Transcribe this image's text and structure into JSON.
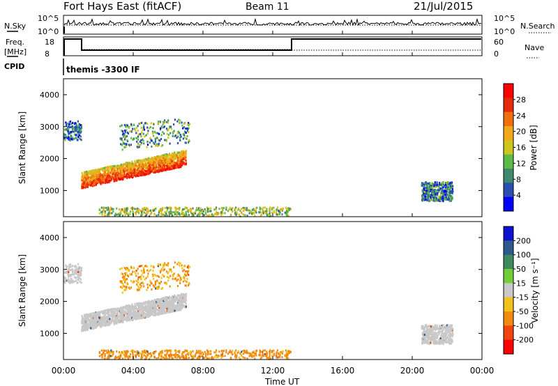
{
  "header": {
    "station": "Fort Hays East (fitACF)",
    "beam": "Beam 11",
    "date": "21/Jul/2015"
  },
  "top_panel": {
    "nsky_label": "N.Sky",
    "nsky_ticks": [
      "10^5",
      "10^0"
    ],
    "nsearch_label": "N.Search",
    "freq_label_1": "Freq.",
    "freq_label_2": "[MHz]",
    "freq_ticks": [
      "18",
      "8"
    ],
    "nave_ticks": [
      "60",
      "0"
    ],
    "nave_label": "Nave",
    "cpid_label": "CPID",
    "cpid_text": "themis -3300 IF"
  },
  "x_axis": {
    "label": "Time UT",
    "ticks": [
      "00:00",
      "04:00",
      "08:00",
      "12:00",
      "16:00",
      "20:00",
      "00:00"
    ]
  },
  "chart_data": [
    {
      "type": "heatmap",
      "title": "",
      "xlabel": "Time UT",
      "ylabel": "Slant Range [km]",
      "xlim": [
        0,
        24
      ],
      "ylim": [
        180,
        4500
      ],
      "y_ticks": [
        1000,
        2000,
        3000,
        4000
      ],
      "colorbar": {
        "label": "Power [dB]",
        "ticks": [
          4,
          8,
          12,
          16,
          20,
          24,
          28
        ],
        "colors": [
          "#0000ff",
          "#2a4fb0",
          "#3f8a6e",
          "#5dbb4a",
          "#cfc51f",
          "#f2a818",
          "#f26f10",
          "#e62a0c",
          "#ff0000"
        ],
        "range": [
          0,
          32
        ]
      },
      "regions": [
        {
          "name": "sporadic-far",
          "t": [
            0.0,
            1.0
          ],
          "r": [
            2600,
            3200
          ],
          "value": 7
        },
        {
          "name": "band-main",
          "t": [
            1.0,
            7.0
          ],
          "r": [
            1150,
            2150
          ],
          "value": 20
        },
        {
          "name": "band-upper",
          "t": [
            3.2,
            7.2
          ],
          "r": [
            2400,
            3400
          ],
          "value": 10
        },
        {
          "name": "evening-patch",
          "t": [
            20.5,
            22.3
          ],
          "r": [
            700,
            1300
          ],
          "value": 8
        },
        {
          "name": "near-range",
          "t": [
            2.0,
            13.0
          ],
          "r": [
            200,
            500
          ],
          "value": 14
        }
      ]
    },
    {
      "type": "heatmap",
      "title": "",
      "xlabel": "Time UT",
      "ylabel": "Slant Range [km]",
      "xlim": [
        0,
        24
      ],
      "ylim": [
        180,
        4500
      ],
      "y_ticks": [
        1000,
        2000,
        3000,
        4000
      ],
      "colorbar": {
        "label": "Velocity [m s⁻¹]",
        "ticks": [
          "200",
          "100",
          "50",
          "15",
          "-15",
          "-50",
          "-100",
          "-200"
        ],
        "colors": [
          "#1010d0",
          "#2c5a8c",
          "#3d8a5c",
          "#6fce3a",
          "#c8c8c8",
          "#f2c21a",
          "#f28a10",
          "#f2440e",
          "#ff0000"
        ]
      },
      "regions": [
        {
          "name": "sporadic-far",
          "t": [
            0.0,
            1.0
          ],
          "r": [
            2600,
            3200
          ],
          "value": 0
        },
        {
          "name": "band-main",
          "t": [
            1.0,
            7.0
          ],
          "r": [
            1150,
            2150
          ],
          "value": 0
        },
        {
          "name": "band-upper",
          "t": [
            3.2,
            7.2
          ],
          "r": [
            2400,
            3400
          ],
          "value": -30
        },
        {
          "name": "evening-patch",
          "t": [
            20.5,
            22.3
          ],
          "r": [
            700,
            1300
          ],
          "value": 0
        },
        {
          "name": "near-range",
          "t": [
            2.0,
            13.0
          ],
          "r": [
            200,
            500
          ],
          "value": -40
        }
      ]
    }
  ]
}
